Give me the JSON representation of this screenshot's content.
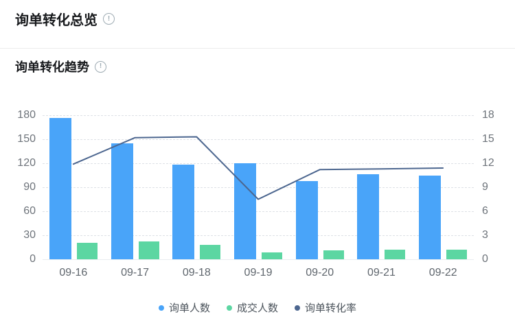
{
  "page": {
    "overview_title": "询单转化总览",
    "trend_title": "询单转化趋势",
    "info_icon_glyph": "!"
  },
  "chart_data": {
    "type": "bar",
    "categories": [
      "09-16",
      "09-17",
      "09-18",
      "09-19",
      "09-20",
      "09-21",
      "09-22"
    ],
    "series": [
      {
        "name": "询单人数",
        "slug": "inquiry-count",
        "type": "bar",
        "yaxis": "left",
        "color": "#49a4f9",
        "values": [
          177,
          145,
          118,
          120,
          98,
          106,
          105
        ]
      },
      {
        "name": "成交人数",
        "slug": "deal-count",
        "type": "bar",
        "yaxis": "left",
        "color": "#5cd6a2",
        "values": [
          21,
          22,
          18,
          9,
          11,
          12,
          12
        ]
      },
      {
        "name": "询单转化率",
        "slug": "conversion-rate",
        "type": "line",
        "yaxis": "right",
        "color": "#4c668f",
        "values": [
          11.9,
          15.2,
          15.3,
          7.5,
          11.2,
          11.3,
          11.4
        ]
      }
    ],
    "left_axis": {
      "min": 0,
      "max": 180,
      "ticks": [
        0,
        30,
        60,
        90,
        120,
        150,
        180
      ]
    },
    "right_axis": {
      "min": 0,
      "max": 18,
      "ticks": [
        0,
        3,
        6,
        9,
        12,
        15,
        18
      ]
    },
    "grid": {
      "horizontal_gridlines": true,
      "style": "dashed"
    },
    "legend_position": "bottom"
  }
}
